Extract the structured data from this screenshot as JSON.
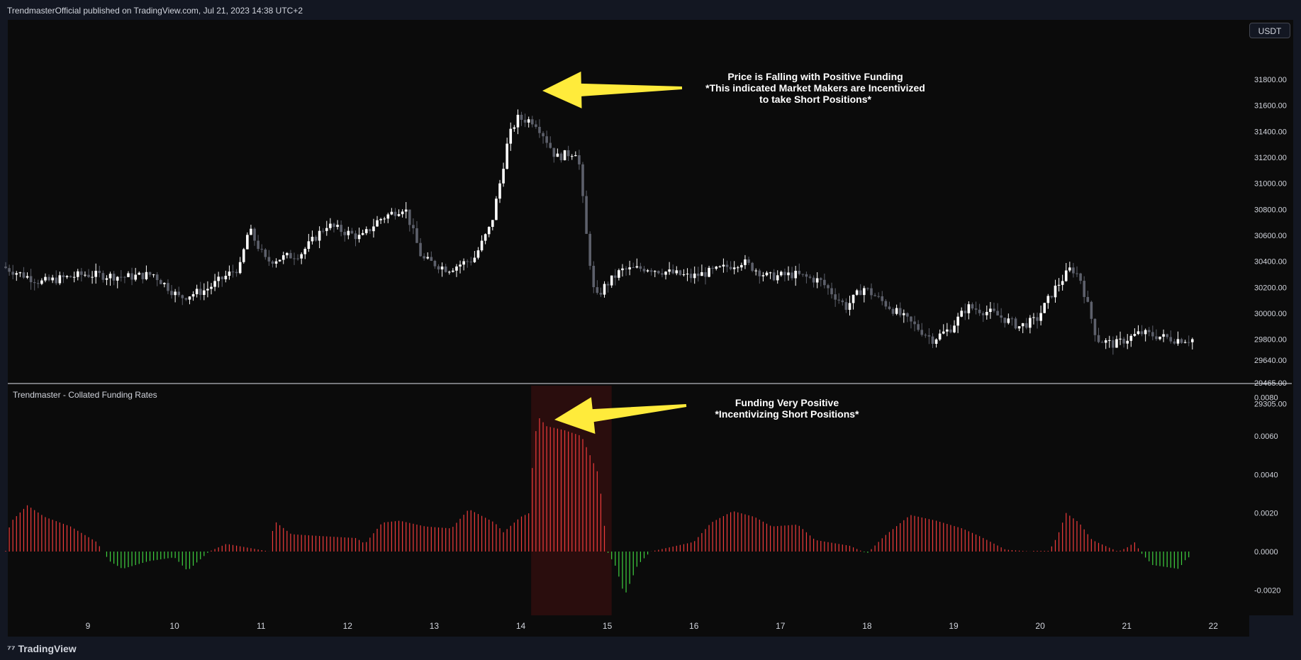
{
  "header": {
    "published_text": "TrendmasterOfficial published on TradingView.com, Jul 21, 2023 14:38 UTC+2"
  },
  "footer": {
    "logo_text": "TradingView",
    "logo_icon": "tradingview-logo-icon"
  },
  "currency_label": "USDT",
  "indicator_title": "Trendmaster - Collated Funding Rates",
  "annotations": {
    "price": [
      "Price is Falling with Positive Funding",
      "*This indicated Market Makers are Incentivized",
      "to take Short Positions*"
    ],
    "funding": [
      "Funding Very Positive",
      "*Incentivizing Short Positions*"
    ]
  },
  "colors": {
    "background": "#0b0b0b",
    "candle_up": "#ffffff",
    "candle_down": "#5d606b",
    "funding_positive": "#ef3b3b",
    "funding_negative": "#3fd13f",
    "arrow": "#ffeb3b",
    "highlight_band": "#2a0d0d"
  },
  "chart_data": [
    {
      "type": "candlestick",
      "title": "",
      "x_labels": [
        "9",
        "10",
        "11",
        "12",
        "13",
        "14",
        "15",
        "16",
        "17",
        "18",
        "19",
        "20",
        "21",
        "22"
      ],
      "y_ticks": [
        31800.0,
        31600.0,
        31400.0,
        31200.0,
        31000.0,
        30800.0,
        30600.0,
        30400.0,
        30200.0,
        30000.0,
        29800.0,
        29640.0,
        29465.0,
        29305.0
      ],
      "y_tick_labels": [
        "31800.00",
        "31600.00",
        "31400.00",
        "31200.00",
        "31000.00",
        "30800.00",
        "30600.00",
        "30400.00",
        "30200.00",
        "30000.00",
        "29800.00",
        "29640.00",
        "29465.00",
        "29305.00"
      ],
      "x_range": [
        8.05,
        21.8
      ],
      "close_keypoints": [
        [
          8.05,
          30360
        ],
        [
          8.5,
          30240
        ],
        [
          9.0,
          30300
        ],
        [
          9.5,
          30280
        ],
        [
          9.8,
          30300
        ],
        [
          10.1,
          30120
        ],
        [
          10.4,
          30180
        ],
        [
          10.8,
          30360
        ],
        [
          10.9,
          30650
        ],
        [
          11.1,
          30400
        ],
        [
          11.5,
          30460
        ],
        [
          11.8,
          30680
        ],
        [
          12.2,
          30580
        ],
        [
          12.4,
          30720
        ],
        [
          12.7,
          30820
        ],
        [
          12.9,
          30420
        ],
        [
          13.2,
          30340
        ],
        [
          13.5,
          30420
        ],
        [
          13.7,
          30680
        ],
        [
          13.8,
          31000
        ],
        [
          13.9,
          31350
        ],
        [
          14.0,
          31500
        ],
        [
          14.2,
          31480
        ],
        [
          14.3,
          31380
        ],
        [
          14.45,
          31200
        ],
        [
          14.7,
          31250
        ],
        [
          14.8,
          30600
        ],
        [
          14.9,
          30100
        ],
        [
          15.0,
          30200
        ],
        [
          15.2,
          30330
        ],
        [
          15.5,
          30350
        ],
        [
          16.0,
          30280
        ],
        [
          16.3,
          30330
        ],
        [
          16.6,
          30400
        ],
        [
          16.9,
          30280
        ],
        [
          17.2,
          30300
        ],
        [
          17.5,
          30250
        ],
        [
          17.8,
          30050
        ],
        [
          18.0,
          30200
        ],
        [
          18.3,
          30050
        ],
        [
          18.6,
          29900
        ],
        [
          18.8,
          29800
        ],
        [
          19.0,
          29880
        ],
        [
          19.2,
          30050
        ],
        [
          19.5,
          30000
        ],
        [
          19.8,
          29900
        ],
        [
          20.0,
          29950
        ],
        [
          20.2,
          30180
        ],
        [
          20.4,
          30350
        ],
        [
          20.5,
          30280
        ],
        [
          20.7,
          29800
        ],
        [
          20.9,
          29760
        ],
        [
          21.2,
          29850
        ],
        [
          21.6,
          29800
        ]
      ]
    },
    {
      "type": "bar",
      "title": "Trendmaster - Collated Funding Rates",
      "y_ticks": [
        0.008,
        0.006,
        0.004,
        0.002,
        0.0,
        -0.002
      ],
      "y_tick_labels": [
        "0.0080",
        "0.0060",
        "0.0040",
        "0.0020",
        "0.0000",
        "-0.0020"
      ],
      "keypoints": [
        [
          8.05,
          0.0
        ],
        [
          8.1,
          0.0015
        ],
        [
          8.3,
          0.0024
        ],
        [
          8.5,
          0.0018
        ],
        [
          8.8,
          0.0013
        ],
        [
          9.1,
          0.0005
        ],
        [
          9.25,
          -0.0005
        ],
        [
          9.4,
          -0.0009
        ],
        [
          9.7,
          -0.0005
        ],
        [
          10.0,
          -0.0003
        ],
        [
          10.15,
          -0.001
        ],
        [
          10.4,
          0.0
        ],
        [
          10.6,
          0.0004
        ],
        [
          10.85,
          0.0002
        ],
        [
          11.1,
          0.0
        ],
        [
          11.15,
          0.0016
        ],
        [
          11.35,
          0.0009
        ],
        [
          11.7,
          0.0008
        ],
        [
          12.1,
          0.0007
        ],
        [
          12.2,
          0.0004
        ],
        [
          12.4,
          0.0015
        ],
        [
          12.6,
          0.0016
        ],
        [
          12.9,
          0.0013
        ],
        [
          13.2,
          0.0012
        ],
        [
          13.4,
          0.0022
        ],
        [
          13.7,
          0.0015
        ],
        [
          13.8,
          0.001
        ],
        [
          14.0,
          0.0018
        ],
        [
          14.1,
          0.002
        ],
        [
          14.15,
          0.0055
        ],
        [
          14.2,
          0.007
        ],
        [
          14.3,
          0.0065
        ],
        [
          14.5,
          0.0063
        ],
        [
          14.7,
          0.006
        ],
        [
          14.9,
          0.004
        ],
        [
          15.0,
          0.0
        ],
        [
          15.1,
          -0.0008
        ],
        [
          15.2,
          -0.0023
        ],
        [
          15.35,
          -0.0007
        ],
        [
          15.5,
          0.0
        ],
        [
          15.8,
          0.0003
        ],
        [
          16.0,
          0.0005
        ],
        [
          16.2,
          0.0015
        ],
        [
          16.45,
          0.0021
        ],
        [
          16.7,
          0.0018
        ],
        [
          16.9,
          0.0013
        ],
        [
          17.2,
          0.0014
        ],
        [
          17.4,
          0.0006
        ],
        [
          17.8,
          0.0003
        ],
        [
          18.0,
          -0.0001
        ],
        [
          18.2,
          0.0008
        ],
        [
          18.5,
          0.0019
        ],
        [
          18.8,
          0.0016
        ],
        [
          19.1,
          0.0012
        ],
        [
          19.3,
          0.0008
        ],
        [
          19.6,
          0.0001
        ],
        [
          19.9,
          0.0
        ],
        [
          20.1,
          0.0
        ],
        [
          20.2,
          0.0008
        ],
        [
          20.3,
          0.002
        ],
        [
          20.45,
          0.0015
        ],
        [
          20.6,
          0.0006
        ],
        [
          20.9,
          0.0
        ],
        [
          21.0,
          0.0002
        ],
        [
          21.1,
          0.0005
        ],
        [
          21.15,
          0.0
        ],
        [
          21.3,
          -0.0007
        ],
        [
          21.6,
          -0.0009
        ],
        [
          21.7,
          -0.0003
        ]
      ]
    }
  ]
}
